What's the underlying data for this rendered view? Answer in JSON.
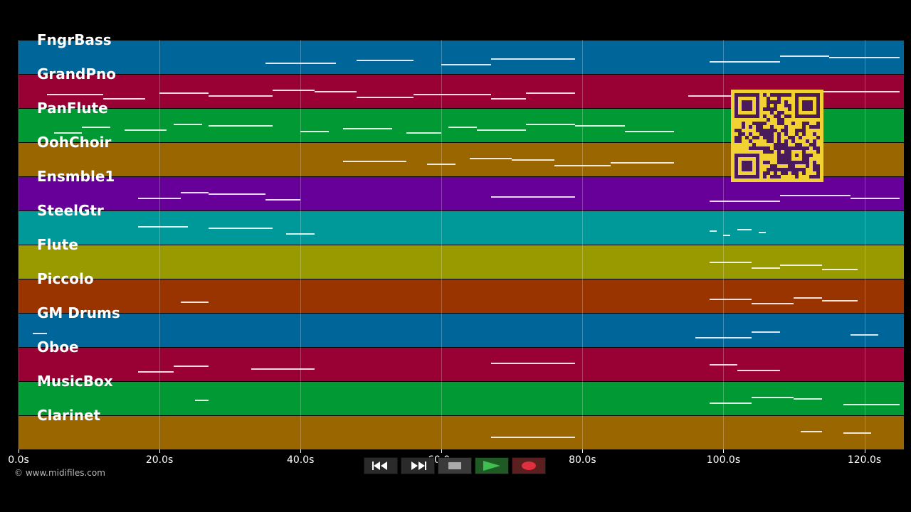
{
  "tracks": [
    {
      "name": "FngrBass",
      "color": "#006699"
    },
    {
      "name": "GrandPno",
      "color": "#990033"
    },
    {
      "name": "PanFlute",
      "color": "#009933"
    },
    {
      "name": "OohChoir",
      "color": "#996600"
    },
    {
      "name": "Ensmble1",
      "color": "#660099"
    },
    {
      "name": "SteelGtr",
      "color": "#009999"
    },
    {
      "name": "Flute",
      "color": "#999900"
    },
    {
      "name": "Piccolo",
      "color": "#993300"
    },
    {
      "name": "GM Drums",
      "color": "#006699"
    },
    {
      "name": "Oboe",
      "color": "#990033"
    },
    {
      "name": "MusicBox",
      "color": "#009933"
    },
    {
      "name": "Clarinet",
      "color": "#996600"
    }
  ],
  "timeline": {
    "max_seconds": 125.6,
    "tick_labels": [
      "0.0s",
      "20.0s",
      "40.0s",
      "60.0s",
      "80.0s",
      "100.0s",
      "120.0s"
    ],
    "tick_values": [
      0,
      20,
      40,
      60,
      80,
      100,
      120
    ]
  },
  "copyright": "© www.midifiles.com",
  "controls": [
    {
      "name": "rewind-button",
      "icon": "rewind-icon"
    },
    {
      "name": "fast-forward-button",
      "icon": "fast-forward-icon"
    },
    {
      "name": "stop-button",
      "icon": "stop-icon"
    },
    {
      "name": "play-button",
      "icon": "play-icon"
    },
    {
      "name": "record-button",
      "icon": "record-icon"
    }
  ],
  "colors": {
    "background": "#000000",
    "play_accent": "#3fbf4f",
    "record_accent": "#e03040",
    "qr_background": "#f2d232",
    "qr_foreground": "#4a1a5a"
  },
  "notes": [
    {
      "track": 0,
      "segments": [
        [
          35,
          45
        ],
        [
          48,
          56
        ],
        [
          60,
          67
        ],
        [
          67,
          79
        ],
        [
          98,
          108
        ],
        [
          108,
          115
        ],
        [
          115,
          125
        ]
      ]
    },
    {
      "track": 1,
      "segments": [
        [
          4,
          12
        ],
        [
          12,
          18
        ],
        [
          20,
          27
        ],
        [
          27,
          36
        ],
        [
          36,
          42
        ],
        [
          42,
          48
        ],
        [
          48,
          56
        ],
        [
          56,
          67
        ],
        [
          67,
          72
        ],
        [
          72,
          79
        ],
        [
          95,
          104
        ],
        [
          104,
          114
        ],
        [
          114,
          125
        ]
      ]
    },
    {
      "track": 2,
      "segments": [
        [
          5,
          9
        ],
        [
          9,
          13
        ],
        [
          15,
          21
        ],
        [
          22,
          26
        ],
        [
          27,
          36
        ],
        [
          40,
          44
        ],
        [
          46,
          53
        ],
        [
          55,
          60
        ],
        [
          61,
          65
        ],
        [
          65,
          72
        ],
        [
          72,
          79
        ],
        [
          79,
          86
        ],
        [
          86,
          93
        ]
      ]
    },
    {
      "track": 3,
      "segments": [
        [
          46,
          55
        ],
        [
          58,
          62
        ],
        [
          64,
          70
        ],
        [
          70,
          76
        ],
        [
          76,
          84
        ],
        [
          84,
          93
        ]
      ]
    },
    {
      "track": 4,
      "segments": [
        [
          17,
          23
        ],
        [
          23,
          27
        ],
        [
          27,
          35
        ],
        [
          35,
          40
        ],
        [
          67,
          79
        ],
        [
          98,
          108
        ],
        [
          108,
          118
        ],
        [
          118,
          125
        ]
      ]
    },
    {
      "track": 5,
      "segments": [
        [
          17,
          24
        ],
        [
          27,
          36
        ],
        [
          38,
          42
        ],
        [
          98,
          99
        ],
        [
          100,
          101
        ],
        [
          102,
          104
        ],
        [
          105,
          106
        ]
      ]
    },
    {
      "track": 6,
      "segments": [
        [
          98,
          104
        ],
        [
          104,
          108
        ],
        [
          108,
          114
        ],
        [
          114,
          119
        ]
      ]
    },
    {
      "track": 7,
      "segments": [
        [
          23,
          27
        ],
        [
          98,
          104
        ],
        [
          104,
          110
        ],
        [
          110,
          114
        ],
        [
          114,
          119
        ]
      ]
    },
    {
      "track": 8,
      "segments": [
        [
          2,
          4
        ],
        [
          96,
          104
        ],
        [
          104,
          108
        ],
        [
          118,
          122
        ]
      ]
    },
    {
      "track": 9,
      "segments": [
        [
          17,
          22
        ],
        [
          22,
          27
        ],
        [
          33,
          42
        ],
        [
          67,
          79
        ],
        [
          98,
          102
        ],
        [
          102,
          108
        ]
      ]
    },
    {
      "track": 10,
      "segments": [
        [
          25,
          27
        ],
        [
          98,
          104
        ],
        [
          104,
          110
        ],
        [
          110,
          114
        ],
        [
          117,
          125
        ]
      ]
    },
    {
      "track": 11,
      "segments": [
        [
          67,
          79
        ],
        [
          111,
          114
        ],
        [
          117,
          121
        ]
      ]
    }
  ]
}
